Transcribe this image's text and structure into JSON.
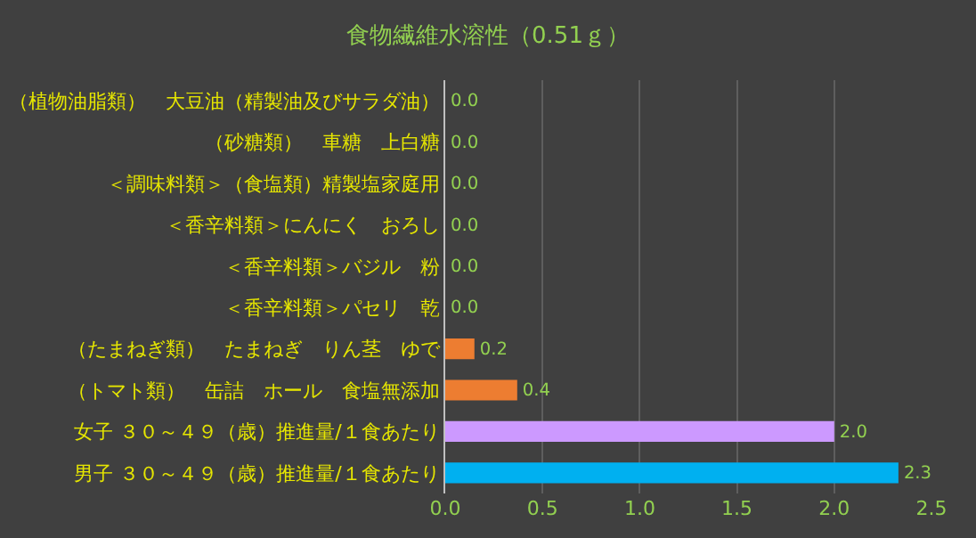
{
  "chart_data": {
    "type": "bar",
    "orientation": "horizontal",
    "title": "食物繊維水溶性（0.51ｇ）",
    "categories": [
      "（植物油脂類）　大豆油（精製油及びサラダ油）",
      "（砂糖類）　車糖　上白糖",
      "＜調味料類＞（食塩類）精製塩家庭用",
      "＜香辛料類＞にんにく　おろし",
      "＜香辛料類＞バジル　粉",
      "＜香辛料類＞パセリ　乾",
      "（たまねぎ類）　たまねぎ　りん茎　ゆで",
      "（トマト類）　缶詰　ホール　食塩無添加",
      "女子 ３０～４９（歳）推進量/１食あたり",
      "男子 ３０～４９（歳）推進量/１食あたり"
    ],
    "values": [
      0,
      0,
      0,
      0,
      0,
      0,
      0.15,
      0.37,
      2.0,
      2.33
    ],
    "colors": [
      "#ed7d31",
      "#ed7d31",
      "#ed7d31",
      "#ed7d31",
      "#ed7d31",
      "#ed7d31",
      "#ed7d31",
      "#ed7d31",
      "#cc99ff",
      "#00b0f0"
    ],
    "value_labels": [
      "0.0",
      "0.0",
      "0.0",
      "0.0",
      "0.0",
      "0.0",
      "0.2",
      "0.4",
      "2.0",
      "2.3"
    ],
    "xlim": [
      0,
      2.5
    ],
    "xticks": [
      {
        "value": 0,
        "label": "0.0"
      },
      {
        "value": 0.5,
        "label": "0.5"
      },
      {
        "value": 1,
        "label": "1.0"
      },
      {
        "value": 1.5,
        "label": "1.5"
      },
      {
        "value": 2,
        "label": "2.0"
      },
      {
        "value": 2.5,
        "label": "2.5"
      }
    ],
    "grid": "x"
  }
}
